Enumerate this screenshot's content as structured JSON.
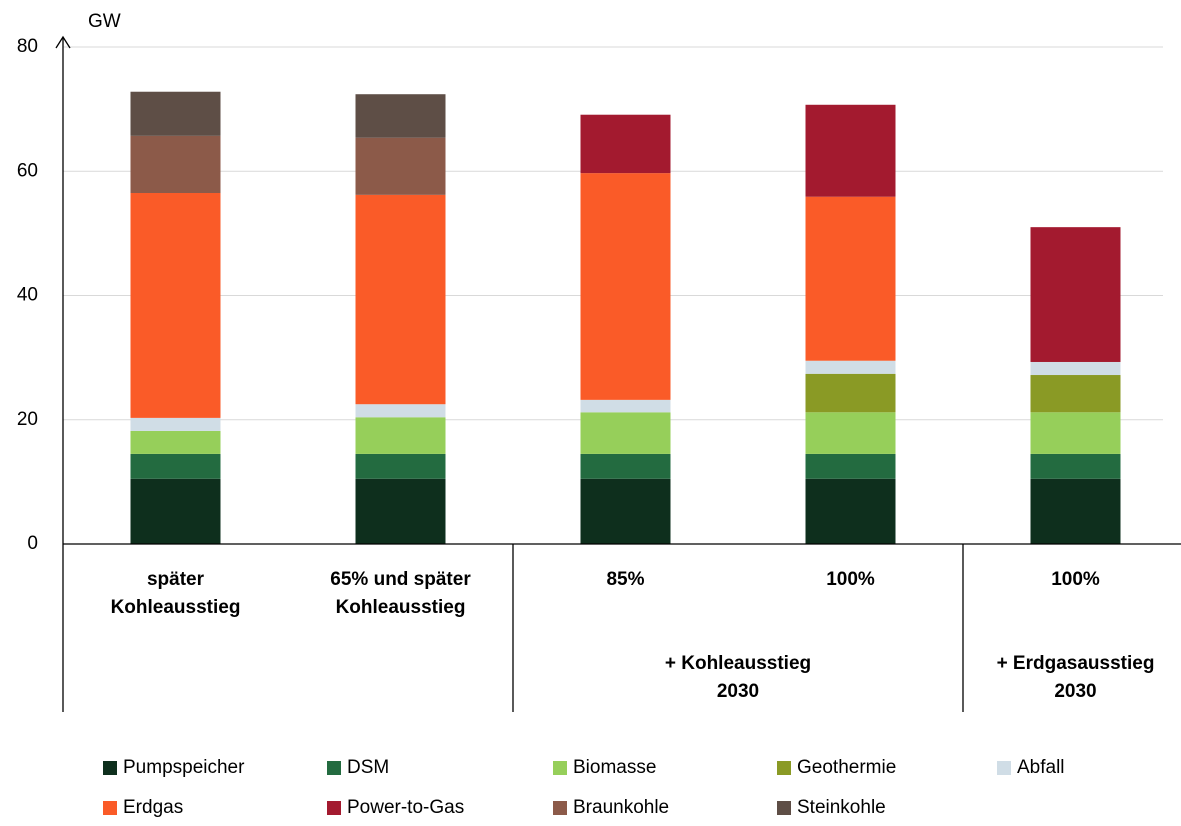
{
  "chart_data": {
    "type": "stacked_bar",
    "y_label": "GW",
    "categories": [
      [
        "später",
        "Kohleausstieg"
      ],
      [
        "65% und später",
        "Kohleausstieg"
      ],
      [
        "85%"
      ],
      [
        "100%"
      ],
      [
        "100%"
      ]
    ],
    "groups": [
      {
        "members": [
          0,
          1
        ]
      },
      {
        "label": [
          "+ Kohleausstieg",
          "2030"
        ],
        "members": [
          2,
          3
        ]
      },
      {
        "label": [
          "+ Erdgasausstieg",
          "2030"
        ],
        "members": [
          4
        ]
      }
    ],
    "series": [
      {
        "name": "Pumpspeicher",
        "color": "#0e2f1d",
        "values": [
          10.5,
          10.5,
          10.5,
          10.5,
          10.5
        ]
      },
      {
        "name": "DSM",
        "color": "#236b40",
        "values": [
          4,
          4,
          4,
          4,
          4
        ]
      },
      {
        "name": "Biomasse",
        "color": "#96cf5a",
        "values": [
          3.7,
          5.9,
          6.7,
          6.7,
          6.7
        ]
      },
      {
        "name": "Geothermie",
        "color": "#8a9a25",
        "values": [
          0,
          0,
          0,
          6.2,
          6
        ]
      },
      {
        "name": "Abfall",
        "color": "#d0dde6",
        "values": [
          2.1,
          2.1,
          2,
          2.1,
          2.1
        ]
      },
      {
        "name": "Erdgas",
        "color": "#fa5b28",
        "values": [
          36.2,
          33.7,
          36.5,
          26.4,
          0
        ]
      },
      {
        "name": "Power-to-Gas",
        "color": "#a31a2f",
        "values": [
          0,
          0,
          9.4,
          14.8,
          21.7
        ]
      },
      {
        "name": "Braunkohle",
        "color": "#8c5a49",
        "values": [
          9.2,
          9.2,
          0,
          0,
          0
        ]
      },
      {
        "name": "Steinkohle",
        "color": "#5e4e46",
        "values": [
          7.1,
          7,
          0,
          0,
          0
        ]
      }
    ],
    "ylim": [
      0,
      80
    ],
    "yticks": [
      0,
      20,
      40,
      60,
      80
    ],
    "grid": true
  }
}
